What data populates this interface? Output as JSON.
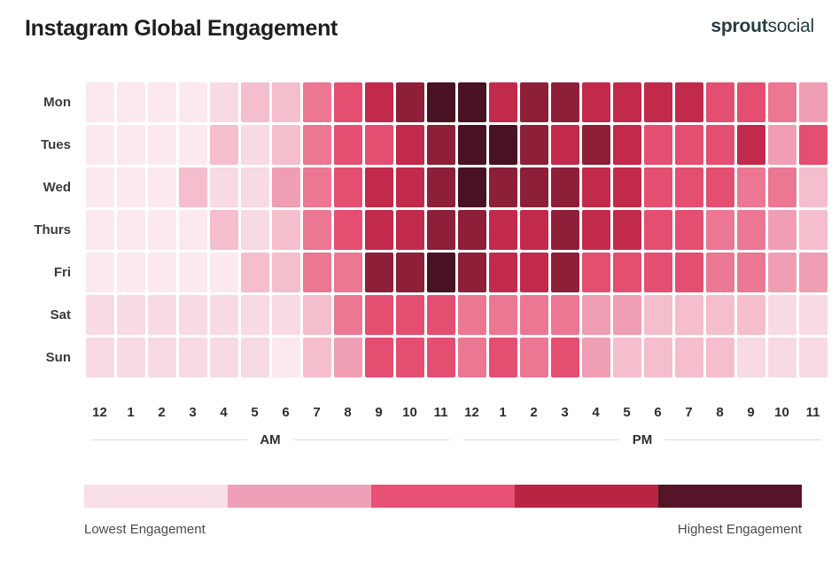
{
  "header": {
    "title": "Instagram Global Engagement",
    "logo_bold": "sprout",
    "logo_light": "social"
  },
  "chart_data": {
    "type": "heatmap",
    "title": "Instagram Global Engagement",
    "days": [
      "Mon",
      "Tues",
      "Wed",
      "Thurs",
      "Fri",
      "Sat",
      "Sun"
    ],
    "hour_labels": [
      "12",
      "1",
      "2",
      "3",
      "4",
      "5",
      "6",
      "7",
      "8",
      "9",
      "10",
      "11",
      "12",
      "1",
      "2",
      "3",
      "4",
      "5",
      "6",
      "7",
      "8",
      "9",
      "10",
      "11"
    ],
    "period_labels": [
      "AM",
      "PM"
    ],
    "scale_note": "engagement level from 0 (lowest) to 8 (highest), estimated from cell shading",
    "values": [
      [
        0,
        0,
        0,
        0,
        1,
        2,
        2,
        4,
        5,
        6,
        7,
        8,
        8,
        6,
        7,
        7,
        6,
        6,
        6,
        6,
        5,
        5,
        4,
        3
      ],
      [
        0,
        0,
        0,
        0,
        2,
        1,
        2,
        4,
        5,
        5,
        6,
        7,
        8,
        8,
        7,
        6,
        7,
        6,
        5,
        5,
        5,
        6,
        3,
        5
      ],
      [
        0,
        0,
        0,
        2,
        1,
        1,
        3,
        4,
        5,
        6,
        6,
        7,
        8,
        7,
        7,
        7,
        6,
        6,
        5,
        5,
        5,
        4,
        4,
        2
      ],
      [
        0,
        0,
        0,
        0,
        2,
        1,
        2,
        4,
        5,
        6,
        6,
        7,
        7,
        6,
        6,
        7,
        6,
        6,
        5,
        5,
        4,
        4,
        3,
        2
      ],
      [
        0,
        0,
        0,
        0,
        0,
        2,
        2,
        4,
        4,
        7,
        7,
        8,
        7,
        6,
        6,
        7,
        5,
        5,
        5,
        5,
        4,
        4,
        3,
        3
      ],
      [
        1,
        1,
        1,
        1,
        1,
        1,
        1,
        2,
        4,
        5,
        5,
        5,
        4,
        4,
        4,
        4,
        3,
        3,
        2,
        2,
        2,
        2,
        1,
        1
      ],
      [
        1,
        1,
        1,
        1,
        1,
        1,
        0,
        2,
        3,
        5,
        5,
        5,
        4,
        5,
        4,
        5,
        3,
        2,
        2,
        2,
        2,
        1,
        1,
        1
      ]
    ],
    "palette": [
      "#FBE9EE",
      "#F8DAE2",
      "#F5BECC",
      "#F09EB3",
      "#EB7792",
      "#E44E70",
      "#C12A4B",
      "#8D1F38",
      "#491222"
    ],
    "legend": {
      "segments": [
        "#F9DFE6",
        "#F0A0B6",
        "#E85175",
        "#B92442",
        "#551527"
      ],
      "low_label": "Lowest Engagement",
      "high_label": "Highest Engagement"
    }
  }
}
